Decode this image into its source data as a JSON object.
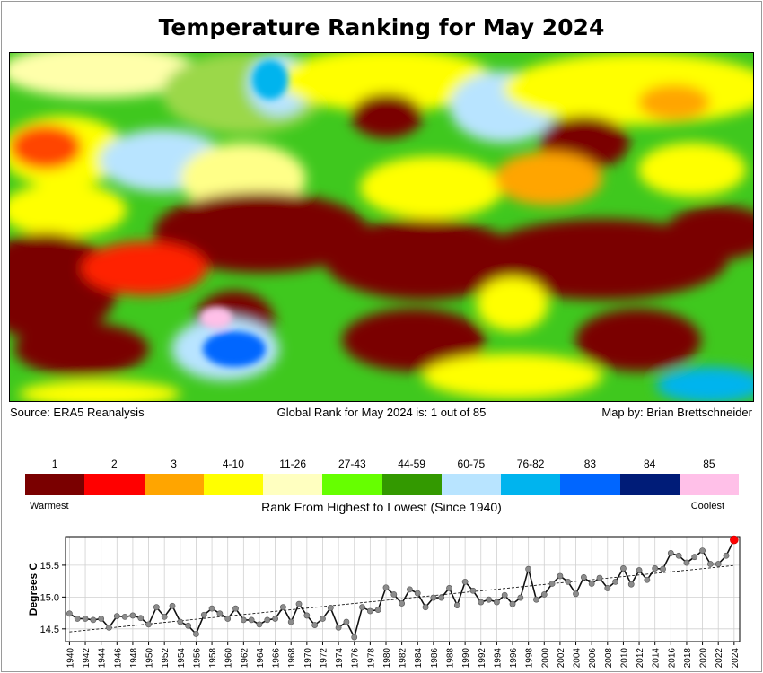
{
  "title": "Temperature Ranking for May 2024",
  "captions": {
    "source": "Source: ERA5 Reanalysis",
    "global_rank": "Global Rank for May 2024 is: 1 out of 85",
    "credit": "Map by: Brian Brettschneider"
  },
  "legend": {
    "title": "Rank From Highest to Lowest (Since 1940)",
    "warmest_label": "Warmest",
    "coolest_label": "Coolest",
    "bins": [
      {
        "label": "1",
        "color": "#7a0000"
      },
      {
        "label": "2",
        "color": "#ff0000"
      },
      {
        "label": "3",
        "color": "#ffa500"
      },
      {
        "label": "4-10",
        "color": "#ffff00"
      },
      {
        "label": "11-26",
        "color": "#ffffc0"
      },
      {
        "label": "27-43",
        "color": "#66ff00"
      },
      {
        "label": "44-59",
        "color": "#339900"
      },
      {
        "label": "60-75",
        "color": "#b8e4ff"
      },
      {
        "label": "76-82",
        "color": "#00b4ee"
      },
      {
        "label": "83",
        "color": "#0066ff"
      },
      {
        "label": "84",
        "color": "#001c78"
      },
      {
        "label": "85",
        "color": "#ffc0e8"
      }
    ]
  },
  "chart_data": {
    "type": "line",
    "ylabel": "Degrees C",
    "xlabel": "",
    "ylim": [
      14.3,
      15.95
    ],
    "yticks": [
      14.5,
      15.0,
      15.5
    ],
    "ytick_labels": [
      "14.5",
      "15.0",
      "15.5"
    ],
    "xlim": [
      1939.5,
      2024.7
    ],
    "xticks": [
      1940,
      1942,
      1944,
      1946,
      1948,
      1950,
      1952,
      1954,
      1956,
      1958,
      1960,
      1962,
      1964,
      1966,
      1968,
      1970,
      1972,
      1974,
      1976,
      1978,
      1980,
      1982,
      1984,
      1986,
      1988,
      1990,
      1992,
      1994,
      1996,
      1998,
      2000,
      2002,
      2004,
      2006,
      2008,
      2010,
      2012,
      2014,
      2016,
      2018,
      2020,
      2022,
      2024
    ],
    "grid": true,
    "trend": true,
    "highlight_color": "#ff0000",
    "series": [
      {
        "x": [
          1940,
          1941,
          1942,
          1943,
          1944,
          1945,
          1946,
          1947,
          1948,
          1949,
          1950,
          1951,
          1952,
          1953,
          1954,
          1955,
          1956,
          1957,
          1958,
          1959,
          1960,
          1961,
          1962,
          1963,
          1964,
          1965,
          1966,
          1967,
          1968,
          1969,
          1970,
          1971,
          1972,
          1973,
          1974,
          1975,
          1976,
          1977,
          1978,
          1979,
          1980,
          1981,
          1982,
          1983,
          1984,
          1985,
          1986,
          1987,
          1988,
          1989,
          1990,
          1991,
          1992,
          1993,
          1994,
          1995,
          1996,
          1997,
          1998,
          1999,
          2000,
          2001,
          2002,
          2003,
          2004,
          2005,
          2006,
          2007,
          2008,
          2009,
          2010,
          2011,
          2012,
          2013,
          2014,
          2015,
          2016,
          2017,
          2018,
          2019,
          2020,
          2021,
          2022,
          2023,
          2024
        ],
        "values": [
          14.74,
          14.66,
          14.66,
          14.64,
          14.66,
          14.52,
          14.7,
          14.69,
          14.71,
          14.67,
          14.57,
          14.84,
          14.69,
          14.86,
          14.61,
          14.55,
          14.42,
          14.72,
          14.82,
          14.74,
          14.66,
          14.82,
          14.64,
          14.64,
          14.57,
          14.64,
          14.66,
          14.84,
          14.61,
          14.89,
          14.71,
          14.56,
          14.66,
          14.83,
          14.52,
          14.61,
          14.37,
          14.84,
          14.78,
          14.8,
          15.15,
          15.04,
          14.9,
          15.12,
          15.06,
          14.84,
          14.99,
          14.99,
          15.14,
          14.87,
          15.24,
          15.1,
          14.92,
          14.96,
          14.92,
          15.03,
          14.89,
          14.99,
          15.44,
          14.96,
          15.04,
          15.21,
          15.33,
          15.24,
          15.05,
          15.31,
          15.21,
          15.3,
          15.14,
          15.24,
          15.45,
          15.2,
          15.42,
          15.27,
          15.45,
          15.44,
          15.69,
          15.65,
          15.54,
          15.63,
          15.73,
          15.52,
          15.52,
          15.65,
          15.9
        ]
      }
    ]
  }
}
